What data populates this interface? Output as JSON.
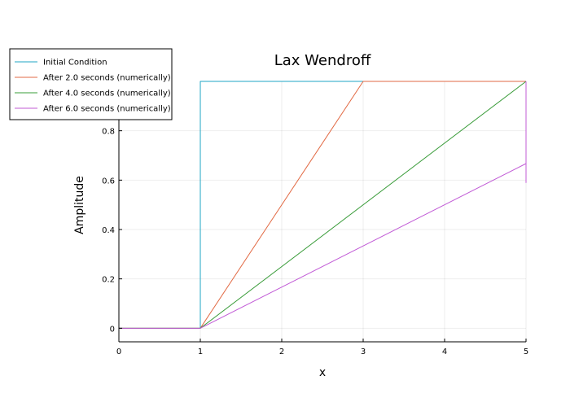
{
  "chart_data": {
    "type": "line",
    "title": "Lax Wendroff",
    "xlabel": "x",
    "ylabel": "Amplitude",
    "xlim": [
      0,
      5
    ],
    "ylim": [
      -0.055,
      1.0
    ],
    "xticks": [
      0,
      1,
      2,
      3,
      4,
      5
    ],
    "xtick_labels": [
      "0",
      "1",
      "2",
      "3",
      "4",
      "5"
    ],
    "yticks": [
      0,
      0.2,
      0.4,
      0.6,
      0.8
    ],
    "ytick_labels": [
      "0",
      "0.2",
      "0.4",
      "0.6",
      "0.8"
    ],
    "grid": true,
    "legend_position": "top-left",
    "series": [
      {
        "name": "Initial Condition",
        "color": "#1fa5c4",
        "x": [
          0,
          1,
          1,
          5
        ],
        "y": [
          0,
          0,
          1,
          1
        ]
      },
      {
        "name": "After 2.0 seconds (numerically)",
        "color": "#e26a44",
        "x": [
          0,
          1,
          3,
          5
        ],
        "y": [
          0,
          0,
          1,
          1
        ]
      },
      {
        "name": "After 4.0 seconds (numerically)",
        "color": "#3a9c3a",
        "x": [
          0,
          1,
          5
        ],
        "y": [
          0,
          0,
          1
        ]
      },
      {
        "name": "After 6.0 seconds (numerically)",
        "color": "#c15bd6",
        "x": [
          0,
          1,
          5,
          5,
          5,
          5
        ],
        "y": [
          0,
          0,
          0.667,
          0.59,
          0.75,
          1.0
        ]
      }
    ]
  }
}
